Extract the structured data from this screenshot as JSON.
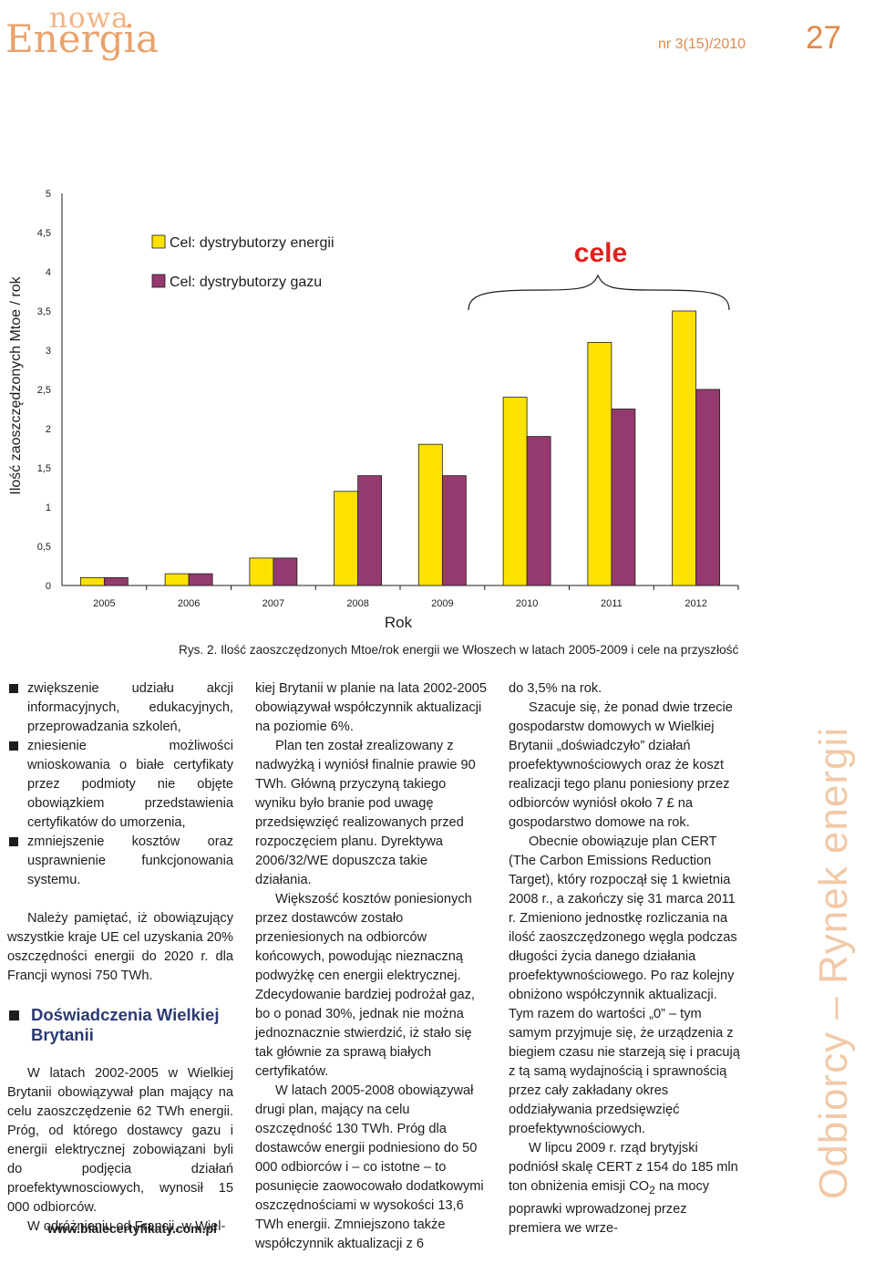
{
  "header": {
    "logo_top": "nowa",
    "logo_main": "Energia",
    "issue": "nr 3(15)/2010",
    "page_number": "27"
  },
  "colors": {
    "yellow": "#fde200",
    "purple": "#943a6e",
    "accent": "#e0201c",
    "orange": "#e08a4c"
  },
  "chart_data": {
    "type": "bar",
    "ylabel": "Ilość zaoszczędzonych Mtoe / rok",
    "xlabel": "Rok",
    "ylim": [
      0,
      5
    ],
    "yticks": [
      "0",
      "0,5",
      "1",
      "1,5",
      "2",
      "2,5",
      "3",
      "3,5",
      "4",
      "4,5",
      "5"
    ],
    "categories": [
      "2005",
      "2006",
      "2007",
      "2008",
      "2009",
      "2010",
      "2011",
      "2012"
    ],
    "series": [
      {
        "name": "Cel: dystrybutorzy energii",
        "color": "#fde200",
        "values": [
          0.1,
          0.15,
          0.35,
          1.2,
          1.8,
          2.4,
          3.1,
          3.5
        ]
      },
      {
        "name": "Cel: dystrybutorzy gazu",
        "color": "#943a6e",
        "values": [
          0.1,
          0.15,
          0.35,
          1.4,
          1.4,
          1.9,
          2.25,
          2.5
        ]
      }
    ],
    "annotation": "cele",
    "caption": "Rys. 2. Ilość zaoszczędzonych Mtoe/rok energii we Włoszech w latach 2005-2009 i cele na przyszłość"
  },
  "col1": {
    "bullets": [
      "zwiększenie udziału akcji informacyjnych, edukacyjnych, przeprowadzania szkoleń,",
      "zniesienie możliwości wnioskowania o białe certyfikaty przez podmioty nie objęte obowiązkiem przedstawienia certyfikatów do umorzenia,",
      "zmniejszenie kosztów oraz usprawnienie funkcjonowania systemu."
    ],
    "para1": "Należy pamiętać, iż obowiązujący wszystkie kraje UE cel uzyskania 20% oszczędności energii do 2020 r. dla Francji wynosi 750 TWh.",
    "heading": "Doświadczenia Wielkiej Brytanii",
    "para2": "W latach 2002-2005 w Wielkiej Brytanii obowiązywał plan mający na celu zaoszczędzenie 62 TWh energii. Próg, od którego dostawcy gazu i energii elektrycznej zobowiązani byli do podjęcia działań proefektywnosciowych, wynosił 15 000 odbiorców.",
    "para3": "W odróżnieniu od Francji, w Wiel-"
  },
  "col2": {
    "p1": "kiej Brytanii w planie na lata 2002-2005 obowiązywał współczynnik aktualizacji na poziomie 6%.",
    "p2": "Plan ten został zrealizowany z nadwyżką i wyniósł finalnie prawie 90 TWh. Główną przyczyną takiego wyniku było branie pod uwagę przedsięwzięć realizowanych przed rozpoczęciem planu. Dyrektywa 2006/32/WE dopuszcza takie działania.",
    "p3": "Większość kosztów poniesionych przez dostawców zostało przeniesionych na odbiorców końcowych, powodując nieznaczną podwyżkę cen energii elektrycznej. Zdecydowanie bardziej podrożał gaz, bo o ponad 30%, jednak nie można jednoznacznie stwierdzić, iż stało się tak głównie za sprawą białych certyfikatów.",
    "p4": "W latach 2005-2008 obowiązywał drugi plan, mający na celu oszczędność 130 TWh. Próg dla dostawców energii podniesiono do 50 000 odbiorców i – co istotne – to posunięcie zaowocowało dodatkowymi oszczędnościami w wysokości 13,6 TWh energii. Zmniejszono także współczynnik aktualizacji z 6"
  },
  "col3": {
    "p1": "do 3,5% na rok.",
    "p2": "Szacuje się, że ponad dwie trzecie gospodarstw domowych w Wielkiej Brytanii „doświadczyło” działań proefektywnościowych oraz że koszt realizacji tego planu poniesiony przez odbiorców wyniósł około 7 £ na gospodarstwo domowe na rok.",
    "p3": "Obecnie obowiązuje plan CERT (The Carbon Emissions Reduction Target), który rozpoczął się 1 kwietnia 2008 r., a zakończy się 31 marca 2011 r. Zmieniono jednostkę rozliczania na ilość zaoszczędzonego węgla podczas długości życia danego działania proefektywnościowego. Po raz kolejny obniżono współczynnik aktualizacji. Tym razem do wartości „0” – tym samym przyjmuje się, że urządzenia z biegiem czasu nie starzeją się i pracują z tą samą wydajnością i sprawnością przez cały zakładany okres oddziaływania przedsięwzięć proefektywnościowych.",
    "p4_a": "W lipcu 2009 r. rząd brytyjski podniósł skalę CERT z 154 do 185 mln ton obniżenia emisji CO",
    "p4_sub": "2",
    "p4_b": " na mocy poprawki wprowadzonej przez premiera we wrze-"
  },
  "sidebar": {
    "section": "Odbiorcy – Rynek energii"
  },
  "footer": {
    "url": "www.bialecertyfikaty.com.pl"
  }
}
